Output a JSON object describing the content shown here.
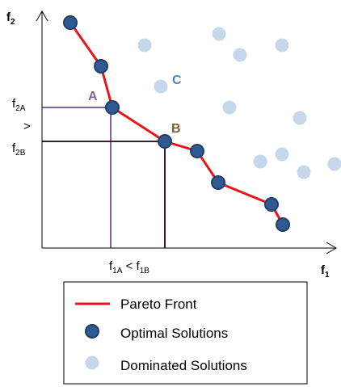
{
  "axes": {
    "y_label": "f",
    "y_label_sub": "2",
    "x_label": "f",
    "x_label_sub": "1"
  },
  "ticks": {
    "f2a": "f",
    "f2a_sub": "2A",
    "gt": ">",
    "f2b": "f",
    "f2b_sub": "2B",
    "f1a": "f",
    "f1a_sub": "1A",
    "lt": " < ",
    "f1b": "f",
    "f1b_sub": "1B"
  },
  "labels": {
    "a": "A",
    "b": "B",
    "c": "C"
  },
  "legend": {
    "pareto_front": "Pareto Front",
    "optimal_solutions": "Optimal Solutions",
    "dominated_solutions": "Dominated Solutions"
  },
  "colors": {
    "pareto_line": "#e8141a",
    "optimal_fill": "#2e5a91",
    "optimal_highlight": "#1f3f6a",
    "dominated_fill": "#c6d7eb",
    "label_a": "#8064a2",
    "label_b": "#7f5b3a",
    "label_c": "#4f81bd",
    "guide_a": "#8064a2",
    "guide_b": "#3d1c2f"
  }
}
